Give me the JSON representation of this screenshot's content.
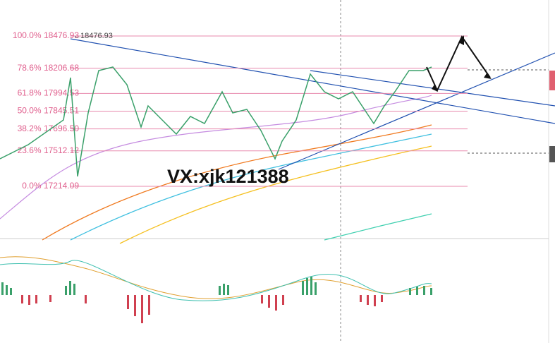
{
  "chart_data": {
    "type": "fibonacci",
    "levels": [
      {
        "text": "100.0% 18476.93",
        "value": 18476.93
      },
      {
        "text": "78.6% 18206.68",
        "value": 18206.68
      },
      {
        "text": "61.8% 17994.53",
        "value": 17994.53
      },
      {
        "text": "50.0% 17845.51",
        "value": 17845.51
      },
      {
        "text": "38.2% 17696.50",
        "value": 17696.5
      },
      {
        "text": "23.6% 17512.12",
        "value": 17512.12
      },
      {
        "text": "0.0% 17214.09",
        "value": 17214.09
      }
    ],
    "high_marker": "18476.93",
    "watermark": "VX:xjk121388"
  }
}
